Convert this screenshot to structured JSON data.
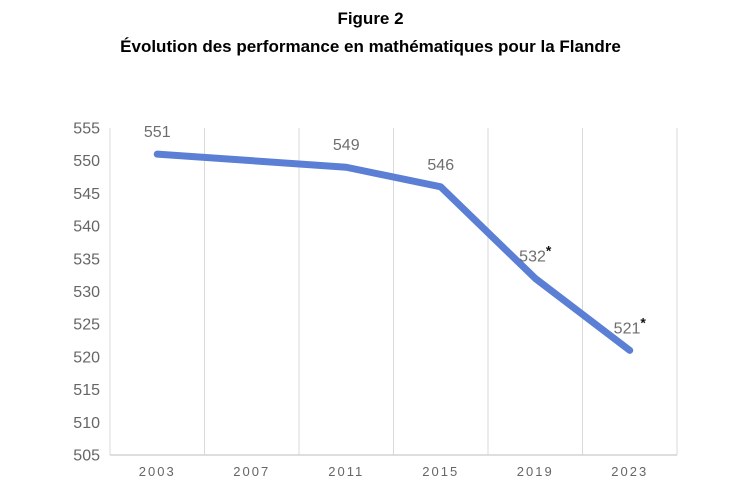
{
  "header": {
    "title": "Figure 2",
    "subtitle": "Évolution des performance en mathématiques pour la Flandre"
  },
  "chart_data": {
    "type": "line",
    "title": "Figure 2",
    "subtitle": "Évolution des performance en mathématiques pour la Flandre",
    "categories": [
      "2003",
      "2007",
      "2011",
      "2015",
      "2019",
      "2023"
    ],
    "series": [
      {
        "name": "Flandre",
        "values": [
          551,
          null,
          549,
          546,
          532,
          521
        ],
        "labels": [
          "551",
          null,
          "549",
          "546",
          "532",
          "521"
        ],
        "asterisk": [
          false,
          null,
          false,
          false,
          true,
          true
        ],
        "color": "#5B7FD4"
      }
    ],
    "ylim": [
      505,
      555
    ],
    "y_ticks": [
      555,
      550,
      545,
      540,
      535,
      530,
      525,
      520,
      515,
      510,
      505
    ],
    "xlabel": "",
    "ylabel": "",
    "grid": "vertical-only",
    "legend": "none",
    "colors": {
      "line": "#5B7FD4",
      "gridline": "#D9D9D9",
      "axis_line": "#D4D4D4",
      "tick_label": "#666666",
      "data_label": "#6E6E6E",
      "asterisk": "#111111",
      "title": "#000000",
      "background": "#FFFFFF"
    }
  }
}
